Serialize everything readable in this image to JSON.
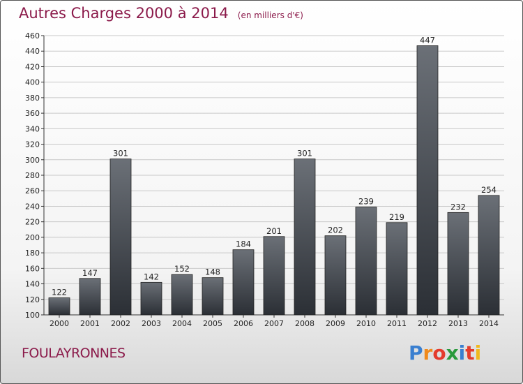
{
  "chart_data": {
    "type": "bar",
    "title": "Autres Charges 2000 à 2014",
    "subtitle": "(en milliers d'€)",
    "xlabel": "",
    "ylabel": "",
    "categories": [
      "2000",
      "2001",
      "2002",
      "2003",
      "2004",
      "2005",
      "2006",
      "2007",
      "2008",
      "2009",
      "2010",
      "2011",
      "2012",
      "2013",
      "2014"
    ],
    "values": [
      122,
      147,
      301,
      142,
      152,
      148,
      184,
      201,
      301,
      202,
      239,
      219,
      447,
      232,
      254
    ],
    "ylim": [
      100,
      460
    ],
    "yticks": [
      100,
      120,
      140,
      160,
      180,
      200,
      220,
      240,
      260,
      280,
      300,
      320,
      340,
      360,
      380,
      400,
      420,
      440,
      460
    ],
    "grid": true,
    "bar_color_top": "#6b7077",
    "bar_color_bottom": "#2b2f35"
  },
  "footer": {
    "commune": "FOULAYRONNES",
    "logo_letters": [
      {
        "char": "P",
        "color": "#3a7fd0"
      },
      {
        "char": "r",
        "color": "#f08a1c"
      },
      {
        "char": "o",
        "color": "#e43b2c"
      },
      {
        "char": "x",
        "color": "#2a9a3c"
      },
      {
        "char": "i",
        "color": "#3a7fd0"
      },
      {
        "char": "t",
        "color": "#e43b2c"
      },
      {
        "char": "i",
        "color": "#f0b81c"
      }
    ]
  },
  "colors": {
    "title": "#8b1a4a",
    "grid": "#c8c8c8",
    "axis": "#333333"
  }
}
